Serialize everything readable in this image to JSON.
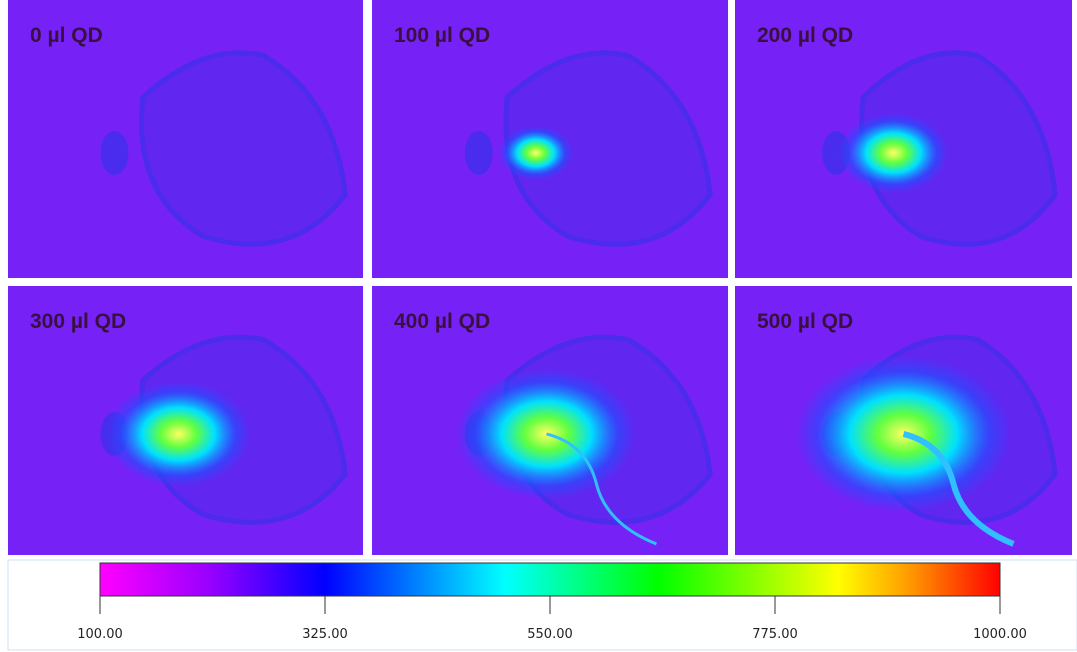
{
  "panels": [
    {
      "label": "0 µl QD"
    },
    {
      "label": "100 µl QD"
    },
    {
      "label": "200 µl QD"
    },
    {
      "label": "300 µl QD"
    },
    {
      "label": "400 µl QD"
    },
    {
      "label": "500 µl QD"
    }
  ],
  "colorbar": {
    "lim": [
      100,
      1000
    ],
    "ticks": [
      {
        "value": 100,
        "label": "100.00"
      },
      {
        "value": 325,
        "label": "325.00"
      },
      {
        "value": 550,
        "label": "550.00"
      },
      {
        "value": 775,
        "label": "775.00"
      },
      {
        "value": 1000,
        "label": "1000.00"
      }
    ]
  }
}
